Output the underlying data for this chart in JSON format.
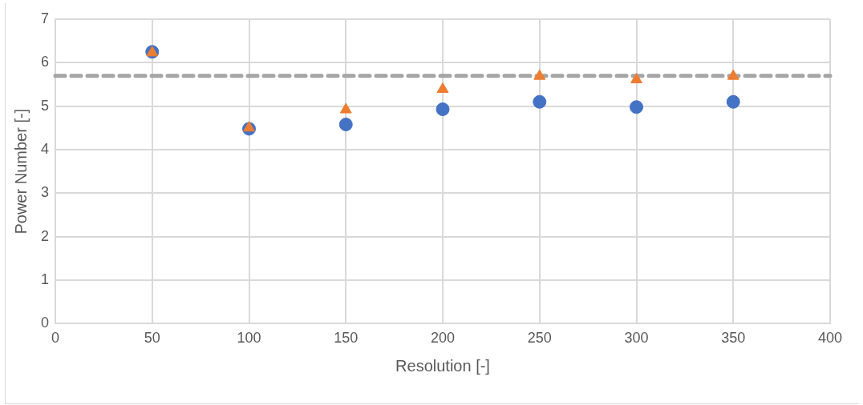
{
  "chart_data": {
    "type": "scatter",
    "xlabel": "Resolution [-]",
    "ylabel": "Power Number [-]",
    "x": [
      50,
      100,
      150,
      200,
      250,
      300,
      350
    ],
    "series": [
      {
        "color": "#4472c4",
        "marker": "circle",
        "values": [
          6.25,
          4.48,
          4.58,
          4.93,
          5.1,
          4.98,
          5.1
        ]
      },
      {
        "color": "#ed7d31",
        "marker": "triangle",
        "values": [
          6.23,
          4.5,
          4.92,
          5.39,
          5.69,
          5.61,
          5.69
        ]
      }
    ],
    "xlim": [
      0,
      400
    ],
    "xticks": [
      0,
      50,
      100,
      150,
      200,
      250,
      300,
      350,
      400
    ],
    "ylim": [
      0,
      7
    ],
    "yticks": [
      0,
      1,
      2,
      3,
      4,
      5,
      6,
      7
    ],
    "grid": true,
    "legend": false,
    "ref_lines": [
      {
        "axis": "y",
        "value": 5.7,
        "color": "#a5a5a5",
        "line_style": "dashed"
      }
    ]
  }
}
